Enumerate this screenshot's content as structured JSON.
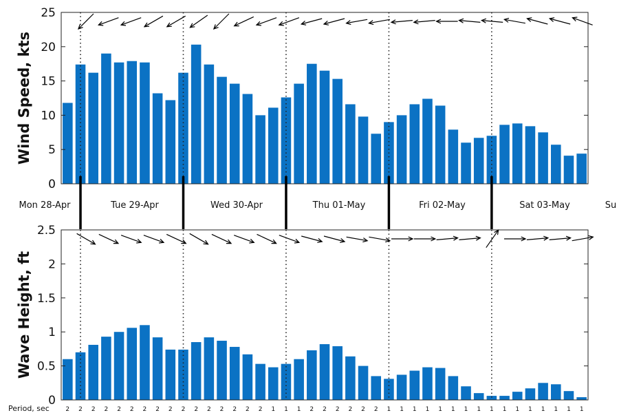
{
  "chart_data": [
    {
      "type": "bar",
      "ylabel": "Wind Speed, kts",
      "ylim": [
        0,
        25
      ],
      "yticks": [
        "0",
        "5",
        "10",
        "15",
        "20",
        "25"
      ],
      "bar_color": "#0b72c4",
      "values": [
        11.8,
        17.4,
        16.2,
        19.0,
        17.7,
        17.9,
        17.7,
        13.2,
        12.2,
        16.2,
        20.3,
        17.4,
        15.6,
        14.6,
        13.1,
        10.0,
        11.1,
        12.6,
        14.6,
        17.5,
        16.5,
        15.3,
        11.6,
        9.8,
        7.3,
        9.0,
        10.0,
        11.6,
        12.4,
        11.4,
        7.9,
        6.0,
        6.7,
        7.0,
        8.6,
        8.8,
        8.4,
        7.5,
        5.7,
        4.1,
        4.4
      ],
      "direction_arrows_deg": [
        225,
        200,
        200,
        210,
        210,
        215,
        225,
        205,
        200,
        200,
        195,
        195,
        190,
        190,
        185,
        185,
        180,
        175,
        175,
        170,
        165,
        165,
        160
      ]
    },
    {
      "type": "bar",
      "ylabel": "Wave Height, ft",
      "ylim": [
        0,
        2.5
      ],
      "yticks": [
        "0",
        "0.5",
        "1",
        "1.5",
        "2",
        "2.5"
      ],
      "bar_color": "#0b72c4",
      "values": [
        0.6,
        0.7,
        0.81,
        0.93,
        1.0,
        1.06,
        1.1,
        0.92,
        0.74,
        0.74,
        0.85,
        0.92,
        0.87,
        0.78,
        0.67,
        0.53,
        0.48,
        0.53,
        0.6,
        0.73,
        0.82,
        0.79,
        0.64,
        0.5,
        0.35,
        0.31,
        0.37,
        0.43,
        0.48,
        0.47,
        0.35,
        0.2,
        0.1,
        0.06,
        0.06,
        0.12,
        0.17,
        0.25,
        0.23,
        0.13,
        0.04
      ],
      "direction_arrows_deg": [
        330,
        335,
        340,
        340,
        335,
        330,
        335,
        340,
        335,
        340,
        345,
        345,
        350,
        350,
        0,
        0,
        5,
        5,
        55,
        0,
        5,
        5,
        10
      ],
      "period_title": "Period, sec",
      "periods": [
        "2",
        "2",
        "2",
        "2",
        "2",
        "2",
        "2",
        "2",
        "2",
        "2",
        "2",
        "2",
        "2",
        "2",
        "2",
        "2",
        "1",
        "1",
        "1",
        "2",
        "2",
        "2",
        "2",
        "2",
        "2",
        "1",
        "1",
        "1",
        "1",
        "1",
        "1",
        "1",
        "1",
        "1",
        "1",
        "1",
        "1",
        "1",
        "1",
        "1",
        "1"
      ]
    }
  ],
  "days": [
    "Mon 28-Apr",
    "Tue 29-Apr",
    "Wed 30-Apr",
    "Thu 01-May",
    "Fri 02-May",
    "Sat 03-May",
    "Su"
  ]
}
